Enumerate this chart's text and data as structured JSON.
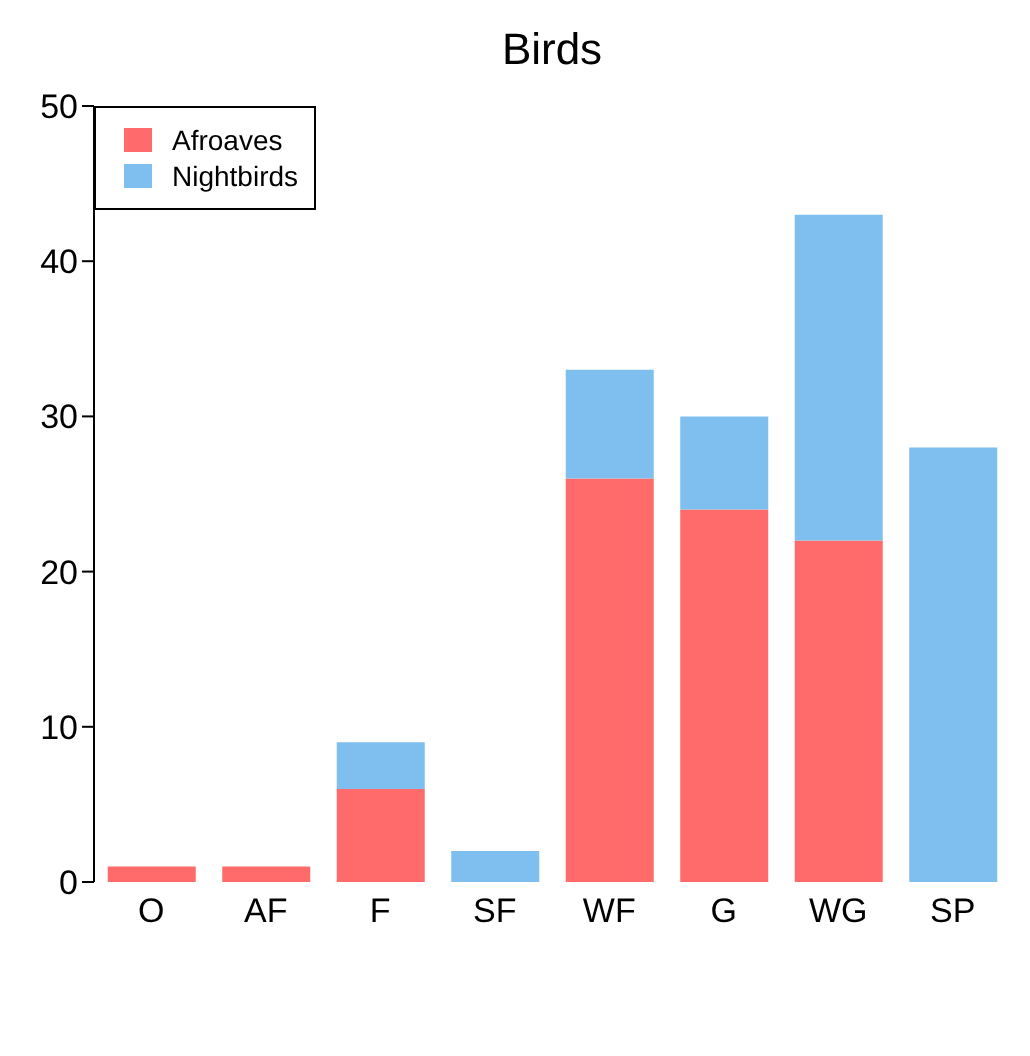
{
  "chart_data": {
    "type": "bar",
    "title": "Birds",
    "categories": [
      "O",
      "AF",
      "F",
      "SF",
      "WF",
      "G",
      "WG",
      "SP"
    ],
    "stacked": true,
    "series": [
      {
        "name": "Afroaves",
        "color": "#ff6b6b",
        "values": [
          1,
          1,
          6,
          0,
          26,
          24,
          22,
          0
        ]
      },
      {
        "name": "Nightbirds",
        "color": "#7fbfef",
        "values": [
          0,
          0,
          3,
          2,
          7,
          6,
          21,
          28
        ]
      }
    ],
    "ylim": [
      0,
      50
    ],
    "yticks": [
      0,
      10,
      20,
      30,
      40,
      50
    ],
    "grid": false,
    "legend": "top left"
  }
}
